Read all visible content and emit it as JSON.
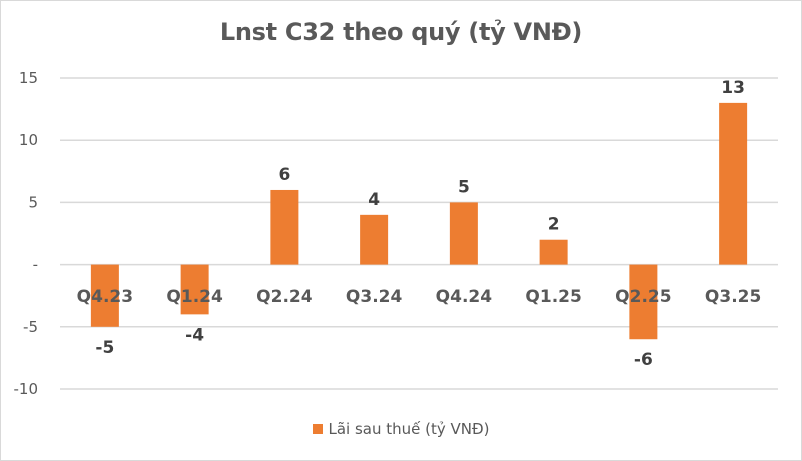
{
  "chart_data": {
    "type": "bar",
    "title": "Lnst C32 theo quý (tỷ VNĐ)",
    "xlabel": "",
    "ylabel": "",
    "categories": [
      "Q4.23",
      "Q1.24",
      "Q2.24",
      "Q3.24",
      "Q4.24",
      "Q1.25",
      "Q2.25",
      "Q3.25"
    ],
    "series": [
      {
        "name": "Lãi sau thuế (tỷ VNĐ)",
        "values": [
          -5,
          -4,
          6,
          4,
          5,
          2,
          -6,
          13
        ],
        "color": "#ed7d31"
      }
    ],
    "data_labels": [
      "-5",
      "-4",
      "6",
      "4",
      "5",
      "2",
      "-6",
      "13"
    ],
    "ylim": [
      -10,
      15
    ],
    "yticks": [
      15,
      10,
      5,
      0,
      -5,
      -10
    ],
    "ytick_labels": [
      "15",
      "10",
      "5",
      "-",
      "-5",
      "-10"
    ],
    "grid": true,
    "legend_position": "bottom"
  },
  "colors": {
    "bar": "#ed7d31",
    "grid": "#d9d9d9",
    "text": "#595959",
    "label": "#404040"
  }
}
